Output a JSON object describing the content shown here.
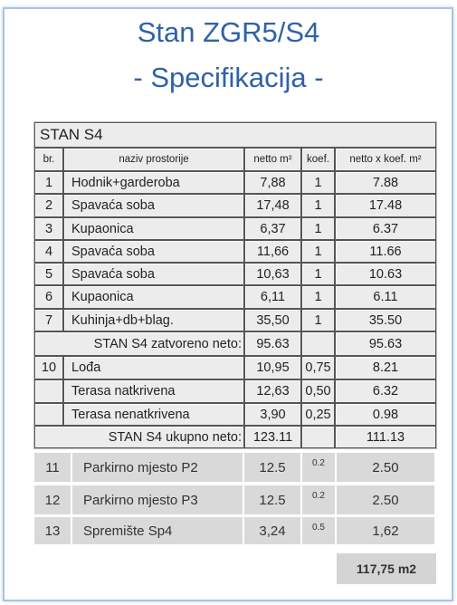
{
  "header": {
    "title": "Stan ZGR5/S4",
    "subtitle": "- Specifikacija -"
  },
  "table": {
    "title": "STAN S4",
    "headers": [
      "br.",
      "naziv prostorije",
      "netto m²",
      "koef.",
      "netto x koef. m²"
    ],
    "rows": [
      {
        "br": "1",
        "naziv": "Hodnik+garderoba",
        "netto": "7,88",
        "koef": "1",
        "ukupno": "7.88"
      },
      {
        "br": "2",
        "naziv": "Spavaća soba",
        "netto": "17,48",
        "koef": "1",
        "ukupno": "17.48"
      },
      {
        "br": "3",
        "naziv": "Kupaonica",
        "netto": "6,37",
        "koef": "1",
        "ukupno": "6.37"
      },
      {
        "br": "4",
        "naziv": "Spavaća soba",
        "netto": "11,66",
        "koef": "1",
        "ukupno": "11.66"
      },
      {
        "br": "5",
        "naziv": "Spavaća soba",
        "netto": "10,63",
        "koef": "1",
        "ukupno": "10.63"
      },
      {
        "br": "6",
        "naziv": "Kupaonica",
        "netto": "6,11",
        "koef": "1",
        "ukupno": "6.11"
      },
      {
        "br": "7",
        "naziv": "Kuhinja+db+blag.",
        "netto": "35,50",
        "koef": "1",
        "ukupno": "35.50"
      }
    ],
    "subtotal": {
      "label": "STAN S4 zatvoreno neto:",
      "netto": "95.63",
      "ukupno": "95.63"
    },
    "rows2": [
      {
        "br": "10",
        "naziv": "Lođa",
        "netto": "10,95",
        "koef": "0,75",
        "ukupno": "8.21"
      },
      {
        "naziv": "Terasa natkrivena",
        "netto": "12,63",
        "koef": "0,50",
        "ukupno": "6.32"
      },
      {
        "naziv": "Terasa nenatkrivena",
        "netto": "3,90",
        "koef": "0,25",
        "ukupno": "0.98"
      }
    ],
    "total": {
      "label": "STAN S4 ukupno neto:",
      "netto": "123.11",
      "ukupno": "111.13"
    }
  },
  "extra": {
    "rows": [
      {
        "br": "11",
        "naziv": "Parkirno mjesto P2",
        "netto": "12.5",
        "koef": "0.2",
        "ukupno": "2.50"
      },
      {
        "br": "12",
        "naziv": "Parkirno mjesto P3",
        "netto": "12.5",
        "koef": "0.2",
        "ukupno": "2.50"
      },
      {
        "br": "13",
        "naziv": "Spremište Sp4",
        "netto": "3,24",
        "koef": "0.5",
        "ukupno": "1,62"
      }
    ],
    "grand_total": "117,75 m2"
  }
}
